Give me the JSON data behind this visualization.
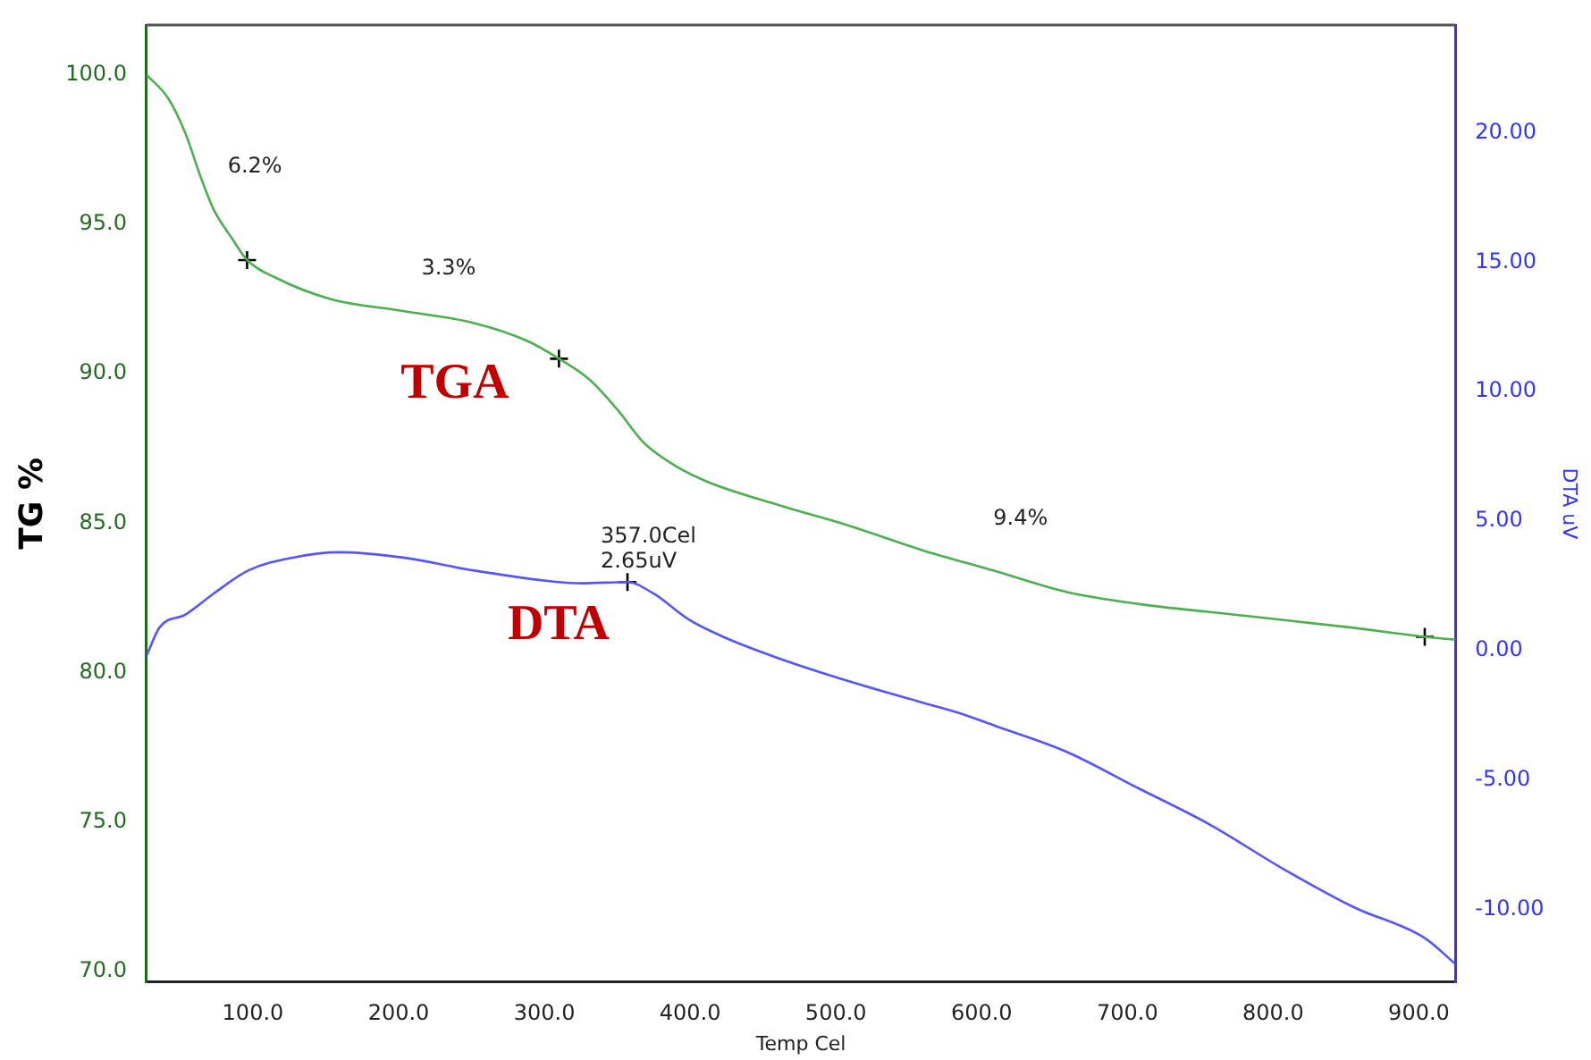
{
  "chart_data": {
    "type": "line",
    "xlabel": "Temp Cel",
    "ylabel": "TG %",
    "y2label": "DTA uV",
    "xlim": [
      27,
      925
    ],
    "xticks": [
      {
        "value": 100,
        "label": "100.0"
      },
      {
        "value": 200,
        "label": "200.0"
      },
      {
        "value": 300,
        "label": "300.0"
      },
      {
        "value": 400,
        "label": "400.0"
      },
      {
        "value": 500,
        "label": "500.0"
      },
      {
        "value": 600,
        "label": "600.0"
      },
      {
        "value": 700,
        "label": "700.0"
      },
      {
        "value": 800,
        "label": "800.0"
      },
      {
        "value": 900,
        "label": "900.0"
      }
    ],
    "ylim": [
      69.65,
      101.66
    ],
    "yticks": [
      {
        "value": 70,
        "label": "70.0"
      },
      {
        "value": 75,
        "label": "75.0"
      },
      {
        "value": 80,
        "label": "80.0"
      },
      {
        "value": 85,
        "label": "85.0"
      },
      {
        "value": 90,
        "label": "90.0"
      },
      {
        "value": 95,
        "label": "95.0"
      },
      {
        "value": 100,
        "label": "100.0"
      }
    ],
    "y2lim": [
      -12.8,
      24.16
    ],
    "y2ticks": [
      {
        "value": -10,
        "label": "-10.00"
      },
      {
        "value": -5,
        "label": "-5.00"
      },
      {
        "value": 0,
        "label": "0.00"
      },
      {
        "value": 5,
        "label": "5.00"
      },
      {
        "value": 10,
        "label": "10.00"
      },
      {
        "value": 15,
        "label": "15.00"
      },
      {
        "value": 20,
        "label": "20.00"
      }
    ],
    "grid": false,
    "legend": false,
    "marker": "none",
    "line_style": "solid",
    "series": [
      {
        "name": "TGA",
        "color": "#4caf50",
        "x": [
          27,
          42,
          54,
          64,
          73,
          86,
          96,
          116,
          153,
          202,
          251,
          288,
          310,
          331,
          350,
          368,
          387,
          411,
          461,
          510,
          559,
          609,
          658,
          707,
          781,
          855,
          904,
          925
        ],
        "values": [
          100.0,
          99.2,
          98.0,
          96.6,
          95.5,
          94.5,
          93.8,
          93.2,
          92.5,
          92.1,
          91.7,
          91.1,
          90.5,
          89.8,
          88.8,
          87.7,
          87.0,
          86.4,
          85.6,
          84.9,
          84.1,
          83.4,
          82.7,
          82.3,
          81.9,
          81.5,
          81.2,
          81.1
        ]
      },
      {
        "name": "DTA",
        "color": "#5555ff",
        "axis": "y2",
        "x": [
          27,
          36,
          54,
          73,
          97,
          128,
          159,
          202,
          251,
          301,
          325,
          357,
          375,
          399,
          424,
          461,
          510,
          559,
          584,
          609,
          658,
          707,
          756,
          806,
          855,
          904,
          925
        ],
        "values": [
          -0.2,
          0.9,
          1.4,
          2.2,
          3.1,
          3.6,
          3.8,
          3.6,
          3.1,
          2.7,
          2.6,
          2.65,
          2.2,
          1.2,
          0.5,
          -0.3,
          -1.2,
          -2.0,
          -2.4,
          -2.9,
          -3.9,
          -5.3,
          -6.7,
          -8.4,
          -9.9,
          -11.1,
          -12.1
        ]
      },
      {
        "type": "scatter",
        "marker": "cross",
        "color": "#000000",
        "x": [
          96,
          310,
          904
        ],
        "values": [
          93.8,
          90.5,
          81.2
        ]
      },
      {
        "type": "scatter",
        "marker": "cross",
        "color": "#000000",
        "axis": "y2",
        "x": [
          357
        ],
        "values": [
          2.65
        ]
      }
    ],
    "annotations": [
      "6.2%",
      "3.3%",
      "9.4%",
      {
        "text": "357.0Cel\n2.65uV",
        "x": 357,
        "y": 83.1
      }
    ]
  }
}
